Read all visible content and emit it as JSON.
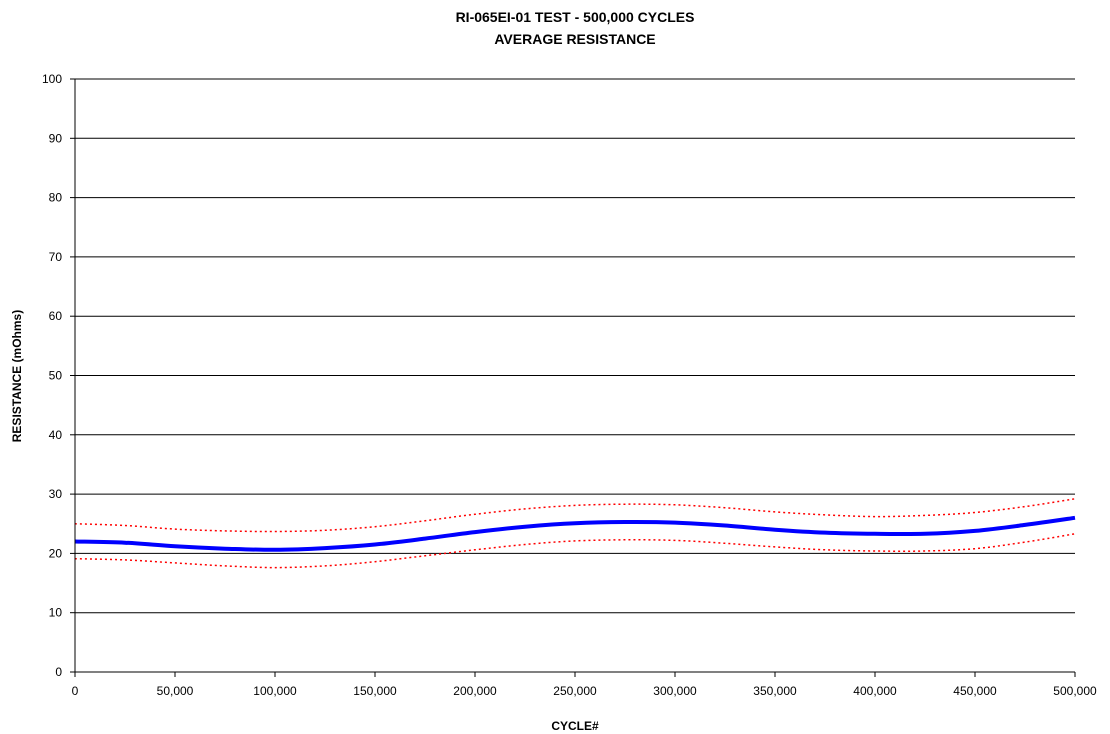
{
  "chart_data": {
    "type": "line",
    "title_line1": "RI-065EI-01 TEST - 500,000 CYCLES",
    "title_line2": "AVERAGE RESISTANCE",
    "xlabel": "CYCLE#",
    "ylabel": "RESISTANCE (mOhms)",
    "xlim": [
      0,
      500000
    ],
    "ylim": [
      0,
      100
    ],
    "x_ticks": [
      0,
      50000,
      100000,
      150000,
      200000,
      250000,
      300000,
      350000,
      400000,
      450000,
      500000
    ],
    "x_tick_labels": [
      "0",
      "50,000",
      "100,000",
      "150,000",
      "200,000",
      "250,000",
      "300,000",
      "350,000",
      "400,000",
      "450,000",
      "500,000"
    ],
    "y_ticks": [
      0,
      10,
      20,
      30,
      40,
      50,
      60,
      70,
      80,
      90,
      100
    ],
    "y_tick_labels": [
      "0",
      "10",
      "20",
      "30",
      "40",
      "50",
      "60",
      "70",
      "80",
      "90",
      "100"
    ],
    "grid": true,
    "legend": "none",
    "series": [
      {
        "role": "average",
        "color": "#0000ff",
        "style": "solid-thick",
        "x": [
          0,
          25000,
          50000,
          75000,
          100000,
          125000,
          150000,
          175000,
          200000,
          225000,
          250000,
          275000,
          300000,
          325000,
          350000,
          375000,
          400000,
          425000,
          450000,
          475000,
          500000
        ],
        "values": [
          22.0,
          21.8,
          21.2,
          20.8,
          20.6,
          20.9,
          21.5,
          22.5,
          23.6,
          24.5,
          25.1,
          25.3,
          25.2,
          24.7,
          24.0,
          23.5,
          23.3,
          23.3,
          23.8,
          24.8,
          26.0
        ]
      },
      {
        "role": "upper-bound",
        "color": "#ff0000",
        "style": "dotted",
        "x": [
          0,
          25000,
          50000,
          75000,
          100000,
          125000,
          150000,
          175000,
          200000,
          225000,
          250000,
          275000,
          300000,
          325000,
          350000,
          375000,
          400000,
          425000,
          450000,
          475000,
          500000
        ],
        "values": [
          25.0,
          24.7,
          24.1,
          23.8,
          23.7,
          23.9,
          24.5,
          25.5,
          26.6,
          27.5,
          28.1,
          28.3,
          28.2,
          27.7,
          27.0,
          26.5,
          26.2,
          26.4,
          26.9,
          27.9,
          29.2
        ]
      },
      {
        "role": "lower-bound",
        "color": "#ff0000",
        "style": "dotted",
        "x": [
          0,
          25000,
          50000,
          75000,
          100000,
          125000,
          150000,
          175000,
          200000,
          225000,
          250000,
          275000,
          300000,
          325000,
          350000,
          375000,
          400000,
          425000,
          450000,
          475000,
          500000
        ],
        "values": [
          19.1,
          18.9,
          18.4,
          17.9,
          17.6,
          17.9,
          18.6,
          19.6,
          20.6,
          21.5,
          22.1,
          22.3,
          22.2,
          21.7,
          21.1,
          20.6,
          20.4,
          20.4,
          20.8,
          21.9,
          23.3
        ]
      }
    ]
  }
}
